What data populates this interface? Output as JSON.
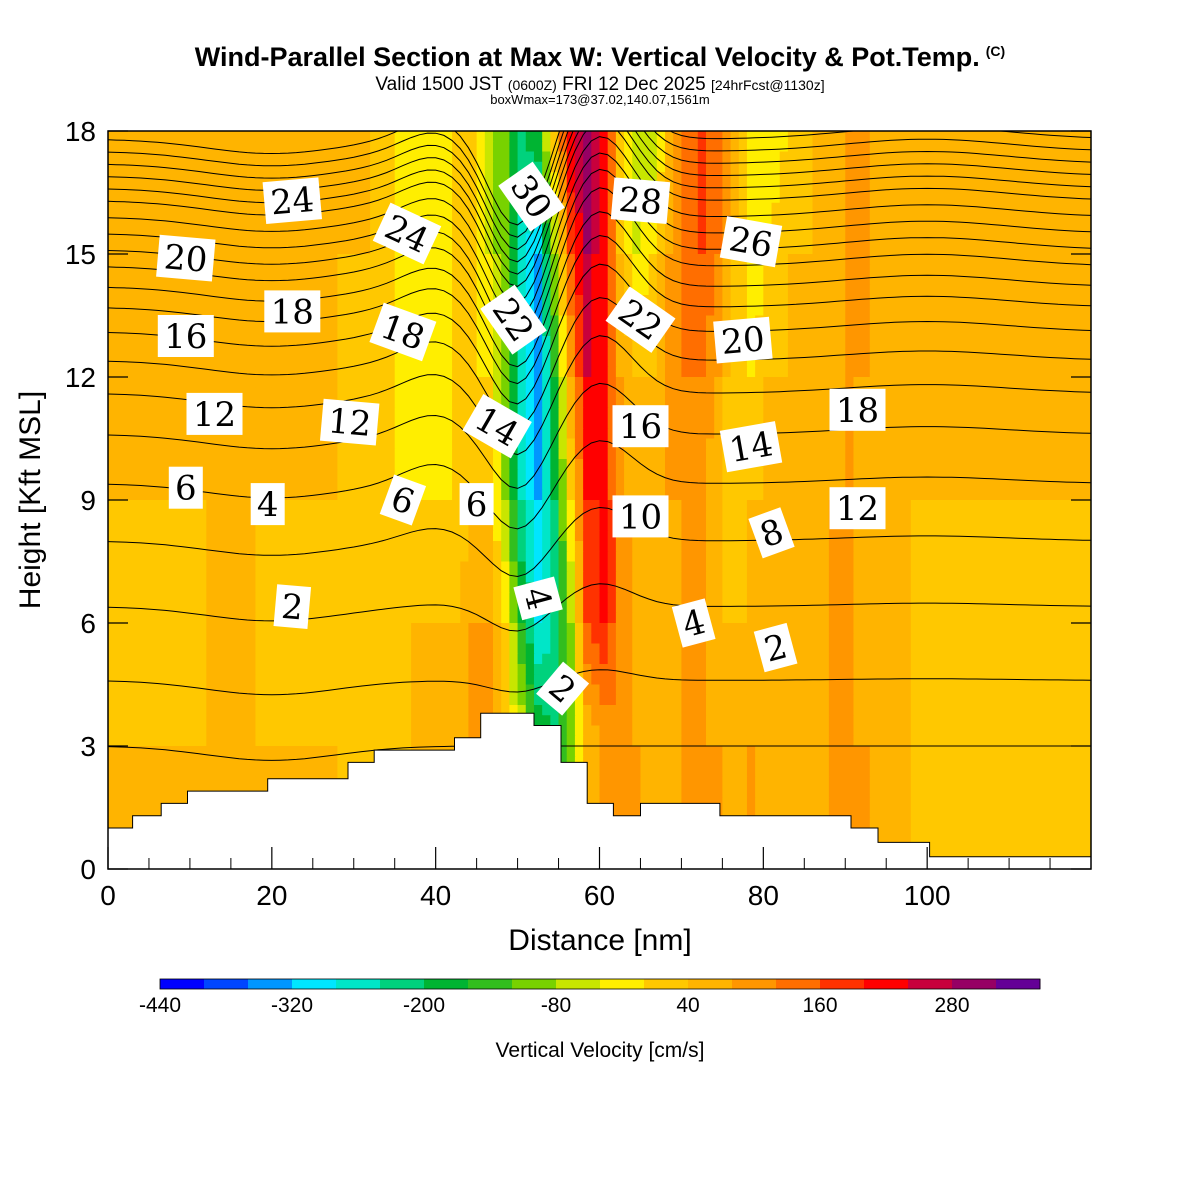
{
  "header": {
    "title": "Wind-Parallel Section at Max W: Vertical Velocity & Pot.Temp.",
    "copyright": "(C)",
    "valid_prefix": "Valid 1500 JST",
    "valid_utc": "(0600Z)",
    "valid_date": "FRI 12 Dec 2025",
    "forecast": "[24hrFcst@1130z]",
    "box_info": "boxWmax=173@37.02,140.07,1561m"
  },
  "chart_data": {
    "type": "heatmap",
    "xlabel": "Distance [nm]",
    "ylabel": "Height [Kft MSL]",
    "xlim": [
      0,
      120
    ],
    "ylim": [
      0,
      18
    ],
    "x_ticks": [
      0,
      20,
      40,
      60,
      80,
      100
    ],
    "y_ticks": [
      0,
      3,
      6,
      9,
      12,
      15,
      18
    ],
    "colorbar": {
      "label": "Vertical Velocity [cm/s]",
      "ticks": [
        -440,
        -320,
        -200,
        -80,
        40,
        160,
        280
      ],
      "min": -440,
      "max": 360,
      "step": 40,
      "colors": [
        "#0000ff",
        "#0046ff",
        "#0096ff",
        "#00e6ff",
        "#00e6c8",
        "#00d27d",
        "#00b432",
        "#32be1e",
        "#78d200",
        "#c8e600",
        "#ffee00",
        "#ffc800",
        "#ffb400",
        "#ff9600",
        "#ff6e00",
        "#ff3200",
        "#ff0000",
        "#c8003c",
        "#960064",
        "#640096"
      ]
    },
    "terrain_kft": [
      [
        0,
        1.0
      ],
      [
        3,
        1.0
      ],
      [
        3,
        1.3
      ],
      [
        6.5,
        1.3
      ],
      [
        6.5,
        1.6
      ],
      [
        9.7,
        1.6
      ],
      [
        9.7,
        1.9
      ],
      [
        19.5,
        1.9
      ],
      [
        19.5,
        2.2
      ],
      [
        29.3,
        2.2
      ],
      [
        29.3,
        2.6
      ],
      [
        32.5,
        2.6
      ],
      [
        32.5,
        2.9
      ],
      [
        42.3,
        2.9
      ],
      [
        42.3,
        3.2
      ],
      [
        45.5,
        3.2
      ],
      [
        45.5,
        3.8
      ],
      [
        52,
        3.8
      ],
      [
        52,
        3.5
      ],
      [
        55.3,
        3.5
      ],
      [
        55.3,
        2.6
      ],
      [
        58.5,
        2.6
      ],
      [
        58.5,
        1.6
      ],
      [
        61.7,
        1.6
      ],
      [
        61.7,
        1.3
      ],
      [
        65,
        1.3
      ],
      [
        65,
        1.6
      ],
      [
        74.7,
        1.6
      ],
      [
        74.7,
        1.3
      ],
      [
        90.7,
        1.3
      ],
      [
        90.7,
        1.0
      ],
      [
        94,
        1.0
      ],
      [
        94,
        0.65
      ],
      [
        100.3,
        0.65
      ],
      [
        100.3,
        0.3
      ],
      [
        120,
        0.3
      ]
    ],
    "w_field": {
      "x": [
        0,
        8,
        12,
        18,
        22,
        28,
        32,
        35,
        37.5,
        39.5,
        42.5,
        44.5,
        46.5,
        48.5,
        50.5,
        52.5,
        54.5,
        56.5,
        58.5,
        60.5,
        62.5,
        64.5,
        66.5,
        68.5,
        70.5,
        72.5,
        74.5,
        76.5,
        78.5,
        80.5,
        83,
        86,
        88.5,
        90.5,
        92.5,
        95,
        97.5,
        100,
        104,
        108,
        112,
        116,
        120
      ],
      "y": [
        3,
        6,
        9,
        12,
        15,
        18
      ],
      "layers": [
        [
          40,
          40,
          40,
          40,
          40,
          40,
          0,
          0,
          40,
          40,
          40,
          80,
          80,
          0,
          -40,
          -160,
          -200,
          -120,
          40,
          80,
          120,
          80,
          40,
          40,
          80,
          80,
          80,
          40,
          80,
          40,
          40,
          40,
          80,
          80,
          80,
          40,
          40,
          0,
          0,
          0,
          0,
          0,
          0
        ],
        [
          40,
          0,
          40,
          40,
          0,
          0,
          0,
          0,
          40,
          40,
          40,
          80,
          80,
          0,
          -160,
          -280,
          -240,
          -80,
          160,
          200,
          120,
          40,
          40,
          40,
          80,
          80,
          40,
          40,
          40,
          40,
          40,
          40,
          80,
          80,
          40,
          40,
          40,
          0,
          0,
          0,
          0,
          0,
          0
        ],
        [
          40,
          40,
          40,
          40,
          40,
          40,
          0,
          0,
          0,
          0,
          0,
          40,
          40,
          -80,
          -240,
          -320,
          -200,
          0,
          200,
          200,
          120,
          40,
          40,
          80,
          80,
          80,
          40,
          0,
          40,
          40,
          40,
          40,
          80,
          80,
          40,
          40,
          40,
          40,
          40,
          40,
          40,
          40,
          40
        ],
        [
          40,
          40,
          40,
          40,
          40,
          40,
          0,
          0,
          -40,
          -40,
          0,
          0,
          0,
          -120,
          -280,
          -360,
          -160,
          80,
          240,
          200,
          80,
          40,
          40,
          80,
          120,
          120,
          80,
          0,
          0,
          40,
          40,
          40,
          40,
          80,
          80,
          40,
          40,
          40,
          40,
          40,
          80,
          40,
          40
        ],
        [
          40,
          40,
          40,
          40,
          40,
          40,
          40,
          0,
          -40,
          -40,
          0,
          0,
          -40,
          -120,
          -280,
          -320,
          -80,
          160,
          280,
          200,
          40,
          -40,
          0,
          80,
          120,
          160,
          120,
          40,
          -40,
          0,
          40,
          40,
          40,
          80,
          80,
          40,
          40,
          40,
          40,
          40,
          40,
          40,
          40
        ],
        [
          40,
          40,
          40,
          40,
          40,
          40,
          40,
          0,
          0,
          -40,
          0,
          0,
          -80,
          -120,
          -200,
          -160,
          40,
          240,
          320,
          240,
          40,
          -80,
          -80,
          40,
          120,
          160,
          160,
          40,
          -40,
          -40,
          0,
          40,
          40,
          80,
          80,
          40,
          40,
          40,
          40,
          40,
          40,
          40,
          40
        ]
      ]
    },
    "theta_contours": {
      "interval_K": 1,
      "baselines_kft": [
        3.0,
        4.6,
        6.4,
        8.0,
        9.4,
        10.6,
        11.6,
        12.4,
        13.1,
        13.7,
        14.2,
        14.7,
        15.1,
        15.5,
        15.9,
        16.3,
        16.6,
        16.9,
        17.2,
        17.5,
        17.8
      ],
      "label_values": [
        2,
        4,
        6,
        8,
        10,
        12,
        14,
        16,
        18,
        20,
        22,
        24,
        26,
        28,
        30
      ]
    },
    "labels": [
      {
        "text": "24",
        "x": 22.5,
        "y": 16.3,
        "angle": -5
      },
      {
        "text": "24",
        "x": 36.5,
        "y": 15.5,
        "angle": 25
      },
      {
        "text": "30",
        "x": 51.7,
        "y": 16.4,
        "angle": 55
      },
      {
        "text": "28",
        "x": 65.0,
        "y": 16.3,
        "angle": 5
      },
      {
        "text": "26",
        "x": 78.5,
        "y": 15.3,
        "angle": 10
      },
      {
        "text": "20",
        "x": 9.5,
        "y": 14.9,
        "angle": 5
      },
      {
        "text": "18",
        "x": 22.5,
        "y": 13.6,
        "angle": 0
      },
      {
        "text": "18",
        "x": 36.0,
        "y": 13.1,
        "angle": 20
      },
      {
        "text": "22",
        "x": 49.5,
        "y": 13.4,
        "angle": 55
      },
      {
        "text": "22",
        "x": 65.0,
        "y": 13.4,
        "angle": 35
      },
      {
        "text": "20",
        "x": 77.5,
        "y": 12.9,
        "angle": -5
      },
      {
        "text": "16",
        "x": 9.5,
        "y": 13.0,
        "angle": 0
      },
      {
        "text": "12",
        "x": 13.0,
        "y": 11.1,
        "angle": 0
      },
      {
        "text": "12",
        "x": 29.5,
        "y": 10.9,
        "angle": 5
      },
      {
        "text": "14",
        "x": 47.5,
        "y": 10.8,
        "angle": 30
      },
      {
        "text": "16",
        "x": 65.0,
        "y": 10.8,
        "angle": 0
      },
      {
        "text": "14",
        "x": 78.5,
        "y": 10.3,
        "angle": -10
      },
      {
        "text": "18",
        "x": 91.5,
        "y": 11.2,
        "angle": 0
      },
      {
        "text": "6",
        "x": 9.5,
        "y": 9.3,
        "angle": 0
      },
      {
        "text": "4",
        "x": 19.5,
        "y": 8.9,
        "angle": 0
      },
      {
        "text": "6",
        "x": 36.0,
        "y": 9.0,
        "angle": 20
      },
      {
        "text": "6",
        "x": 45.0,
        "y": 8.9,
        "angle": 0
      },
      {
        "text": "10",
        "x": 65.0,
        "y": 8.6,
        "angle": 0
      },
      {
        "text": "8",
        "x": 81.0,
        "y": 8.2,
        "angle": -20
      },
      {
        "text": "12",
        "x": 91.5,
        "y": 8.8,
        "angle": 0
      },
      {
        "text": "2",
        "x": 22.5,
        "y": 6.4,
        "angle": 5
      },
      {
        "text": "4",
        "x": 52.5,
        "y": 6.6,
        "angle": 75
      },
      {
        "text": "4",
        "x": 71.5,
        "y": 6.0,
        "angle": -15
      },
      {
        "text": "2",
        "x": 81.5,
        "y": 5.4,
        "angle": -15
      },
      {
        "text": "2",
        "x": 55.5,
        "y": 4.4,
        "angle": 40
      }
    ]
  }
}
